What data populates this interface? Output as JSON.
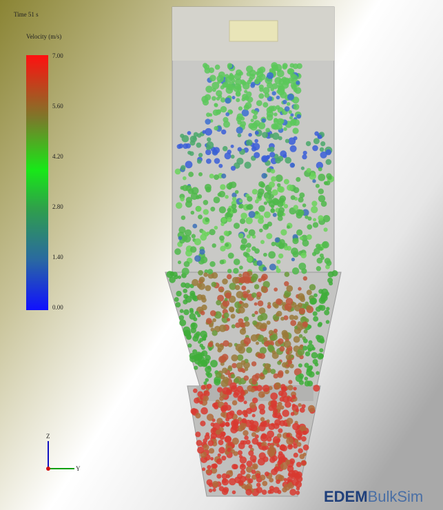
{
  "header": {
    "time": "Time  51 s"
  },
  "legend": {
    "title": "Velocity (m/s)",
    "ticks": [
      "7.00",
      "5.60",
      "4.20",
      "2.80",
      "1.40",
      "0.00"
    ]
  },
  "axes": {
    "z": "Z",
    "y": "Y"
  },
  "logo": {
    "brand": "EDEM",
    "product": "BulkSim"
  }
}
